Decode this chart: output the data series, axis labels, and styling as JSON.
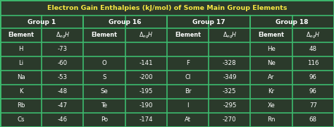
{
  "title": "Electron Gain Enthalpies (kJ/mol) of Some Main Group Elements",
  "bg_color": "#2b3a2b",
  "border_color": "#3dba6e",
  "title_color": "#f5e642",
  "text_color": "#ffffff",
  "groups": [
    "Group 1",
    "Group 16",
    "Group 17",
    "Group 18"
  ],
  "rows": [
    [
      "H",
      "-73",
      "",
      "",
      "",
      "",
      "He",
      "48"
    ],
    [
      "Li",
      "-60",
      "O",
      "-141",
      "F",
      "-328",
      "Ne",
      "116"
    ],
    [
      "Na",
      "-53",
      "S",
      "-200",
      "Cl",
      "-349",
      "Ar",
      "96"
    ],
    [
      "K",
      "-48",
      "Se",
      "-195",
      "Br",
      "-325",
      "Kr",
      "96"
    ],
    [
      "Rb",
      "-47",
      "Te",
      "-190",
      "I",
      "-295",
      "Xe",
      "77"
    ],
    [
      "Cs",
      "-46",
      "Po",
      "-174",
      "At",
      "-270",
      "Rn",
      "68"
    ]
  ],
  "figsize": [
    4.74,
    1.8
  ],
  "dpi": 100
}
